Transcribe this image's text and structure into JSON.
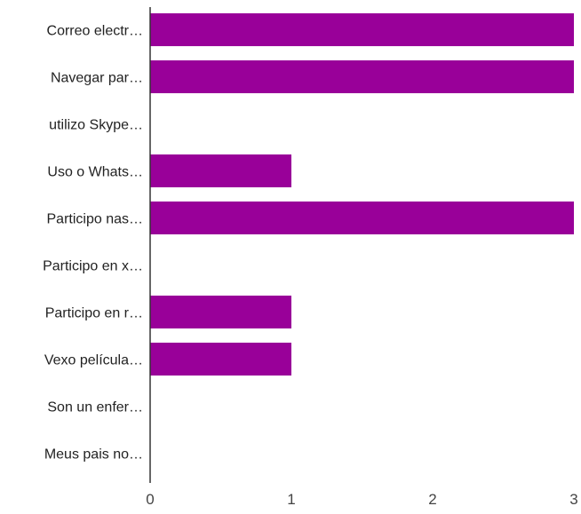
{
  "chart_data": {
    "type": "bar",
    "orientation": "horizontal",
    "categories": [
      "Correo electr…",
      "Navegar par…",
      "utilizo Skype…",
      "Uso o Whats…",
      "Participo nas…",
      "Participo en x…",
      "Participo en r…",
      "Vexo película…",
      "Son un enfer…",
      "Meus pais no…"
    ],
    "values": [
      3,
      3,
      0,
      1,
      3,
      0,
      1,
      1,
      0,
      0
    ],
    "xlim": [
      0,
      3
    ],
    "xticks": [
      "0",
      "1",
      "2",
      "3"
    ],
    "title": "",
    "xlabel": "",
    "ylabel": "",
    "grid": false,
    "legend": "none",
    "colors": {
      "bar": "#990099",
      "axis": "#333333",
      "label": "#222222",
      "tick": "#444444"
    }
  }
}
